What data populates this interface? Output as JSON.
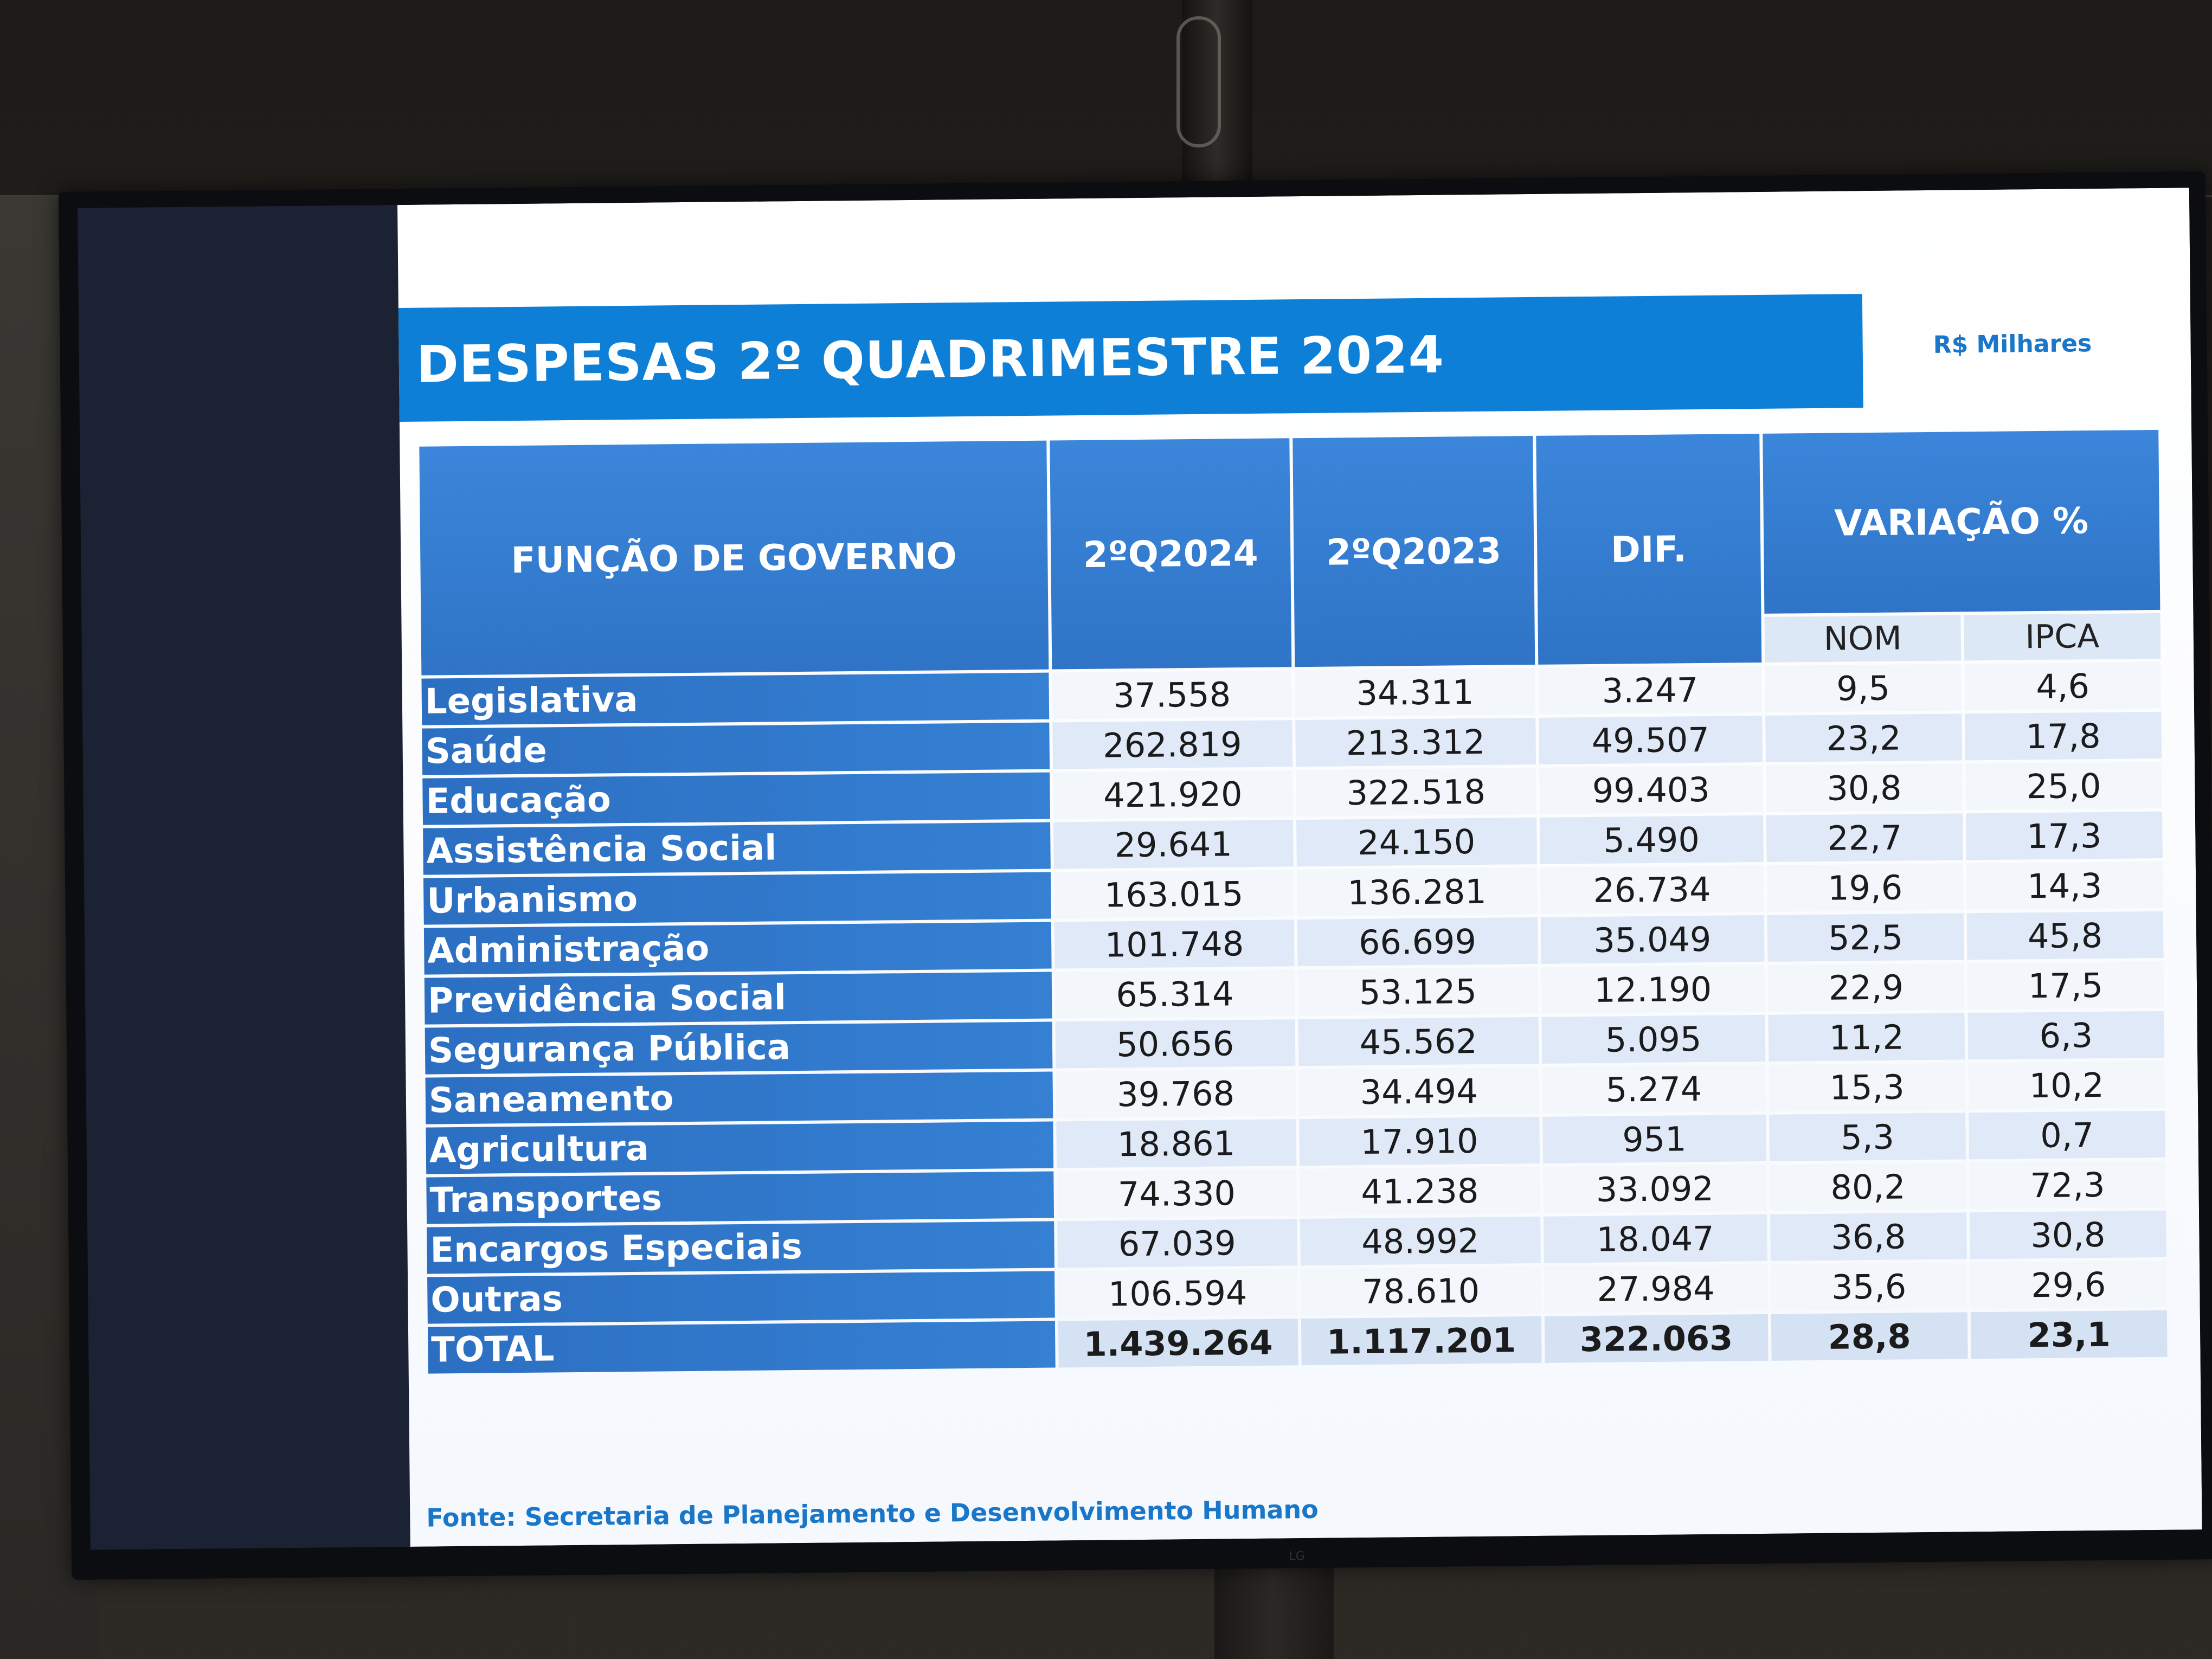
{
  "slide": {
    "title": "DESPESAS 2º QUADRIMESTRE 2024",
    "unit": "R$ Milhares",
    "source": "Fonte: Secretaria de Planejamento e Desenvolvimento Humano"
  },
  "table": {
    "headers": {
      "function": "FUNÇÃO DE GOVERNO",
      "q2024": "2ºQ2024",
      "q2023": "2ºQ2023",
      "dif": "DIF.",
      "variacao": "VARIAÇÃO %",
      "nom": "NOM",
      "ipca": "IPCA"
    },
    "rows": [
      {
        "label": "Legislativa",
        "q2024": "37.558",
        "q2023": "34.311",
        "dif": "3.247",
        "nom": "9,5",
        "ipca": "4,6"
      },
      {
        "label": "Saúde",
        "q2024": "262.819",
        "q2023": "213.312",
        "dif": "49.507",
        "nom": "23,2",
        "ipca": "17,8"
      },
      {
        "label": "Educação",
        "q2024": "421.920",
        "q2023": "322.518",
        "dif": "99.403",
        "nom": "30,8",
        "ipca": "25,0"
      },
      {
        "label": "Assistência Social",
        "q2024": "29.641",
        "q2023": "24.150",
        "dif": "5.490",
        "nom": "22,7",
        "ipca": "17,3"
      },
      {
        "label": "Urbanismo",
        "q2024": "163.015",
        "q2023": "136.281",
        "dif": "26.734",
        "nom": "19,6",
        "ipca": "14,3"
      },
      {
        "label": "Administração",
        "q2024": "101.748",
        "q2023": "66.699",
        "dif": "35.049",
        "nom": "52,5",
        "ipca": "45,8"
      },
      {
        "label": "Previdência Social",
        "q2024": "65.314",
        "q2023": "53.125",
        "dif": "12.190",
        "nom": "22,9",
        "ipca": "17,5"
      },
      {
        "label": "Segurança Pública",
        "q2024": "50.656",
        "q2023": "45.562",
        "dif": "5.095",
        "nom": "11,2",
        "ipca": "6,3"
      },
      {
        "label": "Saneamento",
        "q2024": "39.768",
        "q2023": "34.494",
        "dif": "5.274",
        "nom": "15,3",
        "ipca": "10,2"
      },
      {
        "label": "Agricultura",
        "q2024": "18.861",
        "q2023": "17.910",
        "dif": "951",
        "nom": "5,3",
        "ipca": "0,7"
      },
      {
        "label": "Transportes",
        "q2024": "74.330",
        "q2023": "41.238",
        "dif": "33.092",
        "nom": "80,2",
        "ipca": "72,3"
      },
      {
        "label": "Encargos Especiais",
        "q2024": "67.039",
        "q2023": "48.992",
        "dif": "18.047",
        "nom": "36,8",
        "ipca": "30,8"
      },
      {
        "label": "Outras",
        "q2024": "106.594",
        "q2023": "78.610",
        "dif": "27.984",
        "nom": "35,6",
        "ipca": "29,6"
      }
    ],
    "total": {
      "label": "TOTAL",
      "q2024": "1.439.264",
      "q2023": "1.117.201",
      "dif": "322.063",
      "nom": "28,8",
      "ipca": "23,1"
    }
  }
}
